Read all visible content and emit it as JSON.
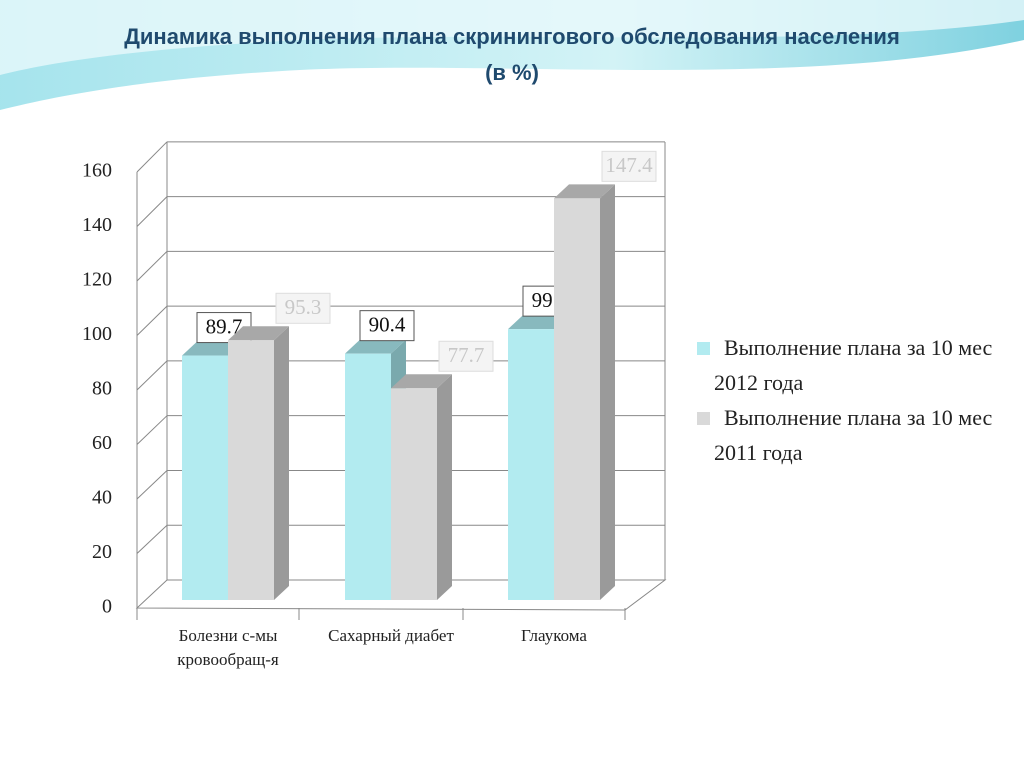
{
  "chart_data": {
    "type": "bar3d",
    "title": "Динамика выполнения плана скринингового обследования населения",
    "subtitle": "(в %)",
    "categories": [
      "Болезни с-мы кровообращ-я",
      "Сахарный диабет",
      "Глаукома"
    ],
    "series": [
      {
        "name": "Выполнение плана за 10 мес 2012 года",
        "color": "#b2ebf0",
        "values": [
          89.7,
          90.4,
          99.4
        ]
      },
      {
        "name": "Выполнение плана за 10 мес 2011 года",
        "color": "#d9d9d9",
        "values": [
          95.3,
          77.7,
          147.4
        ]
      }
    ],
    "ylim": [
      0,
      160
    ],
    "yticks": [
      0,
      20,
      40,
      60,
      80,
      100,
      120,
      140,
      160
    ],
    "grid": true,
    "legend": "right"
  }
}
